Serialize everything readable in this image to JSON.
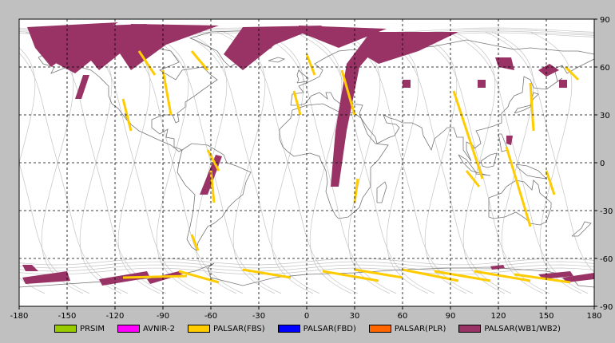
{
  "map": {
    "x_ticks": [
      "-180",
      "-150",
      "-120",
      "-90",
      "-60",
      "-30",
      "0",
      "30",
      "60",
      "90",
      "120",
      "150",
      "180"
    ],
    "y_ticks": [
      "90",
      "60",
      "30",
      "0",
      "-30",
      "-60",
      "-90"
    ],
    "colors": {
      "background": "#c0c0c0",
      "plot": "#ffffff",
      "coast": "#777777",
      "orbit": "#bbbbbb",
      "grid": "#000000"
    }
  },
  "legend": [
    {
      "label": "PRSIM",
      "color": "#99cc00"
    },
    {
      "label": "AVNIR-2",
      "color": "#ff00ff"
    },
    {
      "label": "PALSAR(FBS)",
      "color": "#ffcc00"
    },
    {
      "label": "PALSAR(FBD)",
      "color": "#0000ff"
    },
    {
      "label": "PALSAR(PLR)",
      "color": "#ff6600"
    },
    {
      "label": "PALSAR(WB1/WB2)",
      "color": "#993366"
    }
  ],
  "chart_data": {
    "type": "map",
    "x_range": [
      -180,
      180
    ],
    "y_range": [
      -90,
      90
    ],
    "grid": true,
    "legend_position": "bottom",
    "swaths": [
      {
        "series": "PALSAR(WB1/WB2)",
        "points": [
          [
            -175,
            85
          ],
          [
            -118,
            88
          ],
          [
            -140,
            75
          ],
          [
            -160,
            60
          ],
          [
            -170,
            72
          ]
        ]
      },
      {
        "series": "PALSAR(WB1/WB2)",
        "points": [
          [
            -155,
            85
          ],
          [
            -100,
            87
          ],
          [
            -125,
            72
          ],
          [
            -145,
            56
          ],
          [
            -160,
            64
          ]
        ]
      },
      {
        "series": "PALSAR(WB1/WB2)",
        "points": [
          [
            -135,
            86
          ],
          [
            -80,
            86
          ],
          [
            -110,
            74
          ],
          [
            -130,
            58
          ],
          [
            -140,
            70
          ]
        ]
      },
      {
        "series": "PALSAR(WB1/WB2)",
        "points": [
          [
            -110,
            87
          ],
          [
            -55,
            86
          ],
          [
            -88,
            74
          ],
          [
            -110,
            58
          ],
          [
            -118,
            70
          ]
        ]
      },
      {
        "series": "PALSAR(WB1/WB2)",
        "points": [
          [
            -40,
            85
          ],
          [
            10,
            86
          ],
          [
            -20,
            74
          ],
          [
            -40,
            58
          ],
          [
            -52,
            68
          ]
        ]
      },
      {
        "series": "PALSAR(WB1/WB2)",
        "points": [
          [
            -5,
            86
          ],
          [
            50,
            84
          ],
          [
            20,
            72
          ],
          [
            -5,
            82
          ]
        ]
      },
      {
        "series": "PALSAR(WB1/WB2)",
        "points": [
          [
            40,
            82
          ],
          [
            95,
            82
          ],
          [
            70,
            70
          ],
          [
            45,
            62
          ],
          [
            35,
            68
          ]
        ]
      },
      {
        "series": "PALSAR(WB1/WB2)",
        "points": [
          [
            52,
            82
          ],
          [
            33,
            60
          ],
          [
            25,
            20
          ],
          [
            20,
            -15
          ],
          [
            15,
            -15
          ],
          [
            18,
            20
          ],
          [
            25,
            62
          ],
          [
            40,
            82
          ]
        ]
      },
      {
        "series": "PALSAR(WB1/WB2)",
        "points": [
          [
            -145,
            40
          ],
          [
            -140,
            55
          ],
          [
            -136,
            55
          ],
          [
            -141,
            40
          ]
        ]
      },
      {
        "series": "PALSAR(WB1/WB2)",
        "points": [
          [
            -53,
            4
          ],
          [
            -57,
            5
          ],
          [
            -67,
            -20
          ],
          [
            -62,
            -20
          ]
        ]
      },
      {
        "series": "PALSAR(WB1/WB2)",
        "points": [
          [
            118,
            66
          ],
          [
            128,
            66
          ],
          [
            130,
            58
          ],
          [
            120,
            60
          ]
        ]
      },
      {
        "series": "PALSAR(WB1/WB2)",
        "points": [
          [
            145,
            58
          ],
          [
            152,
            62
          ],
          [
            158,
            58
          ],
          [
            150,
            54
          ]
        ]
      },
      {
        "series": "PALSAR(WB1/WB2)",
        "points": [
          [
            60,
            52
          ],
          [
            65,
            52
          ],
          [
            65,
            47
          ],
          [
            60,
            47
          ]
        ]
      },
      {
        "series": "PALSAR(WB1/WB2)",
        "points": [
          [
            107,
            52
          ],
          [
            112,
            52
          ],
          [
            112,
            47
          ],
          [
            107,
            47
          ]
        ]
      },
      {
        "series": "PALSAR(WB1/WB2)",
        "points": [
          [
            158,
            52
          ],
          [
            163,
            52
          ],
          [
            163,
            47
          ],
          [
            158,
            47
          ]
        ]
      },
      {
        "series": "PALSAR(WB1/WB2)",
        "points": [
          [
            125,
            17
          ],
          [
            129,
            17
          ],
          [
            128,
            11
          ],
          [
            125,
            12
          ]
        ]
      },
      {
        "series": "PALSAR(WB1/WB2)",
        "points": [
          [
            -178,
            -64
          ],
          [
            -172,
            -64
          ],
          [
            -168,
            -68
          ],
          [
            -176,
            -68
          ]
        ]
      },
      {
        "series": "PALSAR(WB1/WB2)",
        "points": [
          [
            -178,
            -72
          ],
          [
            -150,
            -68
          ],
          [
            -148,
            -74
          ],
          [
            -176,
            -76
          ]
        ]
      },
      {
        "series": "PALSAR(WB1/WB2)",
        "points": [
          [
            -130,
            -73
          ],
          [
            -100,
            -68
          ],
          [
            -98,
            -72
          ],
          [
            -128,
            -77
          ]
        ]
      },
      {
        "series": "PALSAR(WB1/WB2)",
        "points": [
          [
            -100,
            -73
          ],
          [
            -80,
            -68
          ],
          [
            -78,
            -70
          ],
          [
            -98,
            -76
          ]
        ]
      },
      {
        "series": "PALSAR(WB1/WB2)",
        "points": [
          [
            115,
            -65
          ],
          [
            123,
            -64
          ],
          [
            124,
            -66
          ],
          [
            116,
            -67
          ]
        ]
      },
      {
        "series": "PALSAR(WB1/WB2)",
        "points": [
          [
            145,
            -70
          ],
          [
            165,
            -68
          ],
          [
            167,
            -71
          ],
          [
            148,
            -73
          ]
        ]
      },
      {
        "series": "PALSAR(WB1/WB2)",
        "points": [
          [
            160,
            -72
          ],
          [
            180,
            -69
          ],
          [
            180,
            -73
          ],
          [
            163,
            -75
          ]
        ]
      }
    ],
    "strips": [
      {
        "series": "PALSAR(FBS)",
        "points": [
          [
            -90,
            58
          ],
          [
            -85,
            30
          ]
        ]
      },
      {
        "series": "PALSAR(FBS)",
        "points": [
          [
            -115,
            40
          ],
          [
            -110,
            20
          ]
        ]
      },
      {
        "series": "PALSAR(FBS)",
        "points": [
          [
            -62,
            8
          ],
          [
            -55,
            -5
          ]
        ]
      },
      {
        "series": "PALSAR(FBS)",
        "points": [
          [
            -60,
            -5
          ],
          [
            -58,
            -25
          ]
        ]
      },
      {
        "series": "PALSAR(FBS)",
        "points": [
          [
            -72,
            -45
          ],
          [
            -68,
            -55
          ]
        ]
      },
      {
        "series": "PALSAR(FBS)",
        "points": [
          [
            -105,
            70
          ],
          [
            -95,
            55
          ]
        ]
      },
      {
        "series": "PALSAR(FBS)",
        "points": [
          [
            -72,
            70
          ],
          [
            -62,
            58
          ]
        ]
      },
      {
        "series": "PALSAR(FBS)",
        "points": [
          [
            22,
            58
          ],
          [
            30,
            30
          ]
        ]
      },
      {
        "series": "PALSAR(FBS)",
        "points": [
          [
            32,
            -10
          ],
          [
            30,
            -25
          ]
        ]
      },
      {
        "series": "PALSAR(FBS)",
        "points": [
          [
            92,
            45
          ],
          [
            110,
            -10
          ]
        ]
      },
      {
        "series": "PALSAR(FBS)",
        "points": [
          [
            100,
            -5
          ],
          [
            108,
            -15
          ]
        ]
      },
      {
        "series": "PALSAR(FBS)",
        "points": [
          [
            140,
            50
          ],
          [
            142,
            20
          ]
        ]
      },
      {
        "series": "PALSAR(FBS)",
        "points": [
          [
            125,
            10
          ],
          [
            140,
            -40
          ]
        ]
      },
      {
        "series": "PALSAR(FBS)",
        "points": [
          [
            150,
            -5
          ],
          [
            155,
            -20
          ]
        ]
      },
      {
        "series": "PALSAR(FBS)",
        "points": [
          [
            -115,
            -72
          ],
          [
            -75,
            -71
          ]
        ]
      },
      {
        "series": "PALSAR(FBS)",
        "points": [
          [
            -80,
            -68
          ],
          [
            -55,
            -75
          ]
        ]
      },
      {
        "series": "PALSAR(FBS)",
        "points": [
          [
            -40,
            -67
          ],
          [
            -10,
            -72
          ]
        ]
      },
      {
        "series": "PALSAR(FBS)",
        "points": [
          [
            10,
            -68
          ],
          [
            45,
            -74
          ]
        ]
      },
      {
        "series": "PALSAR(FBS)",
        "points": [
          [
            30,
            -67
          ],
          [
            60,
            -72
          ]
        ]
      },
      {
        "series": "PALSAR(FBS)",
        "points": [
          [
            60,
            -67
          ],
          [
            95,
            -74
          ]
        ]
      },
      {
        "series": "PALSAR(FBS)",
        "points": [
          [
            80,
            -68
          ],
          [
            115,
            -74
          ]
        ]
      },
      {
        "series": "PALSAR(FBS)",
        "points": [
          [
            105,
            -68
          ],
          [
            140,
            -74
          ]
        ]
      },
      {
        "series": "PALSAR(FBS)",
        "points": [
          [
            130,
            -70
          ],
          [
            165,
            -75
          ]
        ]
      },
      {
        "series": "PALSAR(FBS)",
        "points": [
          [
            162,
            60
          ],
          [
            170,
            52
          ]
        ]
      },
      {
        "series": "PALSAR(FBS)",
        "points": [
          [
            0,
            68
          ],
          [
            5,
            55
          ]
        ]
      },
      {
        "series": "PALSAR(FBS)",
        "points": [
          [
            -8,
            45
          ],
          [
            -4,
            30
          ]
        ]
      }
    ]
  }
}
